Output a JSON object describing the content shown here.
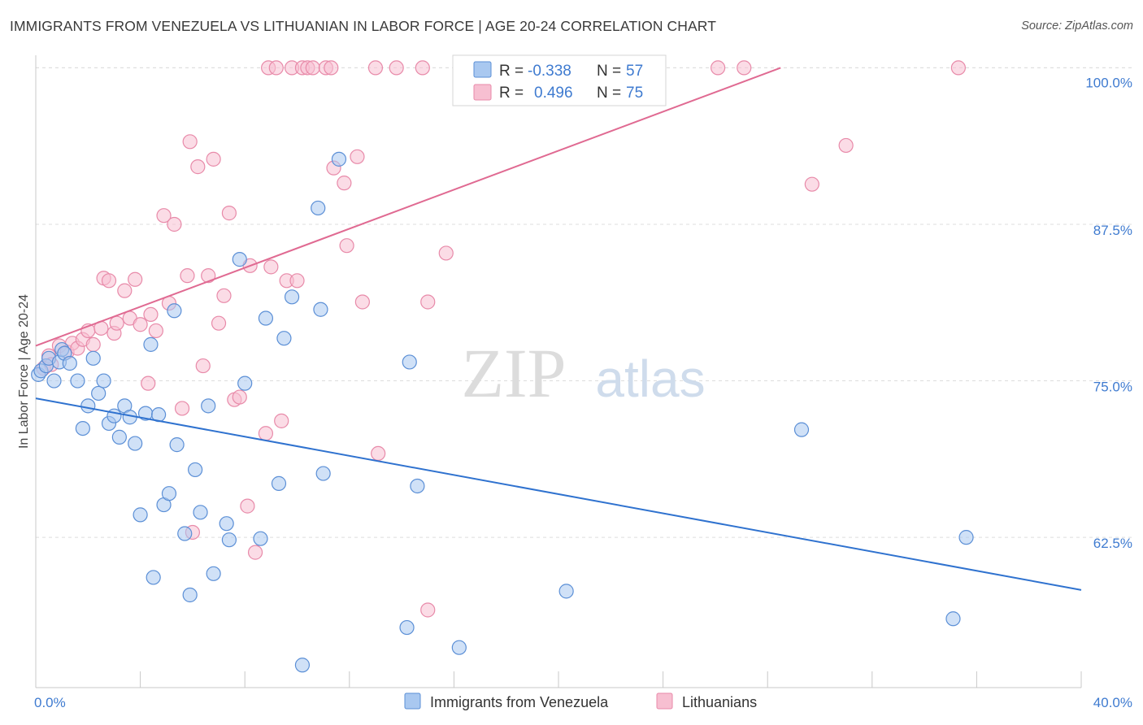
{
  "header": {
    "title": "IMMIGRANTS FROM VENEZUELA VS LITHUANIAN IN LABOR FORCE | AGE 20-24 CORRELATION CHART",
    "source": "Source: ZipAtlas.com"
  },
  "watermark": {
    "zip": "ZIP",
    "atlas": "atlas"
  },
  "colors": {
    "blue_fill": "#a9c8f0",
    "blue_stroke": "#5b8fd6",
    "blue_line": "#2f72cf",
    "pink_fill": "#f7bfd1",
    "pink_stroke": "#e88aa9",
    "pink_line": "#e06a92",
    "value_text": "#3f7bd0",
    "grid": "#dddddd"
  },
  "legend": {
    "rows": [
      {
        "r_label": "R =",
        "r_value": "-0.338",
        "n_label": "N =",
        "n_value": "57"
      },
      {
        "r_label": "R =",
        "r_value": "0.496",
        "n_label": "N =",
        "n_value": "75"
      }
    ]
  },
  "chart_data": {
    "type": "scatter",
    "title": "IMMIGRANTS FROM VENEZUELA VS LITHUANIAN IN LABOR FORCE | AGE 20-24 CORRELATION CHART",
    "ylabel": "In Labor Force | Age 20-24",
    "xlim": [
      0,
      40
    ],
    "ylim": [
      50.5,
      101
    ],
    "x_tick_labels": [
      {
        "x": 0,
        "label": "0.0%"
      },
      {
        "x": 40,
        "label": "40.0%"
      }
    ],
    "y_tick_labels": [
      {
        "y": 100,
        "label": "100.0%"
      },
      {
        "y": 87.5,
        "label": "87.5%"
      },
      {
        "y": 75,
        "label": "75.0%"
      },
      {
        "y": 62.5,
        "label": "62.5%"
      }
    ],
    "x_minor_ticks": [
      0,
      4,
      8,
      12,
      16,
      20,
      24,
      28,
      32,
      36,
      40
    ],
    "legend_position": "top-center",
    "series": [
      {
        "name": "Immigrants from Venezuela",
        "r": -0.338,
        "n": 57,
        "trend": {
          "x": [
            0,
            40
          ],
          "y": [
            73.6,
            58.3
          ]
        },
        "points": [
          [
            0.1,
            75.5
          ],
          [
            0.2,
            75.8
          ],
          [
            0.4,
            76.2
          ],
          [
            0.5,
            76.8
          ],
          [
            0.7,
            75.0
          ],
          [
            0.9,
            76.5
          ],
          [
            1.0,
            77.5
          ],
          [
            1.1,
            77.2
          ],
          [
            1.3,
            76.4
          ],
          [
            1.6,
            75.0
          ],
          [
            1.8,
            71.2
          ],
          [
            2.0,
            73.0
          ],
          [
            2.2,
            76.8
          ],
          [
            2.4,
            74.0
          ],
          [
            2.6,
            75.0
          ],
          [
            2.8,
            71.6
          ],
          [
            3.0,
            72.2
          ],
          [
            3.2,
            70.5
          ],
          [
            3.4,
            73.0
          ],
          [
            3.6,
            72.1
          ],
          [
            3.8,
            70.0
          ],
          [
            4.0,
            64.3
          ],
          [
            4.2,
            72.4
          ],
          [
            4.4,
            77.9
          ],
          [
            4.5,
            59.3
          ],
          [
            4.7,
            72.3
          ],
          [
            4.9,
            65.1
          ],
          [
            5.1,
            66.0
          ],
          [
            5.3,
            80.6
          ],
          [
            5.4,
            69.9
          ],
          [
            5.7,
            62.8
          ],
          [
            5.9,
            57.9
          ],
          [
            6.1,
            67.9
          ],
          [
            6.3,
            64.5
          ],
          [
            6.6,
            73.0
          ],
          [
            6.8,
            59.6
          ],
          [
            7.3,
            63.6
          ],
          [
            7.4,
            62.3
          ],
          [
            7.8,
            84.7
          ],
          [
            8.0,
            74.8
          ],
          [
            8.6,
            62.4
          ],
          [
            8.8,
            80.0
          ],
          [
            9.3,
            66.8
          ],
          [
            9.5,
            78.4
          ],
          [
            9.8,
            81.7
          ],
          [
            10.2,
            52.3
          ],
          [
            10.8,
            88.8
          ],
          [
            10.9,
            80.7
          ],
          [
            11.0,
            67.6
          ],
          [
            11.6,
            92.7
          ],
          [
            14.2,
            55.3
          ],
          [
            14.3,
            76.5
          ],
          [
            14.6,
            66.6
          ],
          [
            16.2,
            53.7
          ],
          [
            20.3,
            58.2
          ],
          [
            29.3,
            71.1
          ],
          [
            35.1,
            56.0
          ],
          [
            35.6,
            62.5
          ]
        ]
      },
      {
        "name": "Lithuanians",
        "r": 0.496,
        "n": 75,
        "trend": {
          "x": [
            0,
            28.5
          ],
          "y": [
            77.8,
            100.0
          ]
        },
        "points": [
          [
            0.3,
            76.0
          ],
          [
            0.5,
            77.0
          ],
          [
            0.6,
            76.3
          ],
          [
            0.9,
            77.8
          ],
          [
            1.2,
            77.3
          ],
          [
            1.4,
            78.0
          ],
          [
            1.6,
            77.6
          ],
          [
            1.8,
            78.3
          ],
          [
            2.0,
            79.0
          ],
          [
            2.2,
            77.9
          ],
          [
            2.5,
            79.2
          ],
          [
            2.6,
            83.2
          ],
          [
            2.8,
            83.0
          ],
          [
            3.0,
            78.8
          ],
          [
            3.1,
            79.6
          ],
          [
            3.4,
            82.2
          ],
          [
            3.6,
            80.0
          ],
          [
            3.8,
            83.1
          ],
          [
            4.0,
            79.5
          ],
          [
            4.3,
            74.8
          ],
          [
            4.4,
            80.3
          ],
          [
            4.6,
            79.0
          ],
          [
            4.9,
            88.2
          ],
          [
            5.1,
            81.2
          ],
          [
            5.3,
            87.5
          ],
          [
            5.6,
            72.8
          ],
          [
            5.8,
            83.4
          ],
          [
            5.9,
            94.1
          ],
          [
            6.0,
            62.9
          ],
          [
            6.2,
            92.1
          ],
          [
            6.4,
            76.2
          ],
          [
            6.6,
            83.4
          ],
          [
            6.8,
            92.7
          ],
          [
            7.0,
            79.6
          ],
          [
            7.2,
            81.8
          ],
          [
            7.4,
            88.4
          ],
          [
            7.6,
            73.5
          ],
          [
            7.8,
            73.7
          ],
          [
            8.1,
            65.0
          ],
          [
            8.2,
            84.2
          ],
          [
            8.4,
            61.3
          ],
          [
            8.8,
            70.8
          ],
          [
            8.9,
            100.0
          ],
          [
            9.0,
            84.1
          ],
          [
            9.2,
            100.0
          ],
          [
            9.4,
            71.8
          ],
          [
            9.6,
            83.0
          ],
          [
            9.8,
            100.0
          ],
          [
            10.0,
            83.0
          ],
          [
            10.2,
            100.0
          ],
          [
            10.4,
            100.0
          ],
          [
            10.6,
            100.0
          ],
          [
            11.1,
            100.0
          ],
          [
            11.3,
            100.0
          ],
          [
            11.4,
            92.0
          ],
          [
            11.9,
            85.8
          ],
          [
            11.8,
            90.8
          ],
          [
            12.3,
            92.9
          ],
          [
            12.5,
            81.3
          ],
          [
            13.0,
            100.0
          ],
          [
            13.1,
            69.2
          ],
          [
            13.8,
            100.0
          ],
          [
            14.8,
            100.0
          ],
          [
            15.0,
            81.3
          ],
          [
            15.0,
            56.7
          ],
          [
            15.7,
            85.2
          ],
          [
            18.0,
            100.0
          ],
          [
            19.4,
            100.0
          ],
          [
            19.8,
            100.0
          ],
          [
            20.3,
            100.0
          ],
          [
            26.1,
            100.0
          ],
          [
            27.1,
            100.0
          ],
          [
            29.7,
            90.7
          ],
          [
            31.0,
            93.8
          ],
          [
            35.3,
            100.0
          ]
        ]
      }
    ]
  }
}
